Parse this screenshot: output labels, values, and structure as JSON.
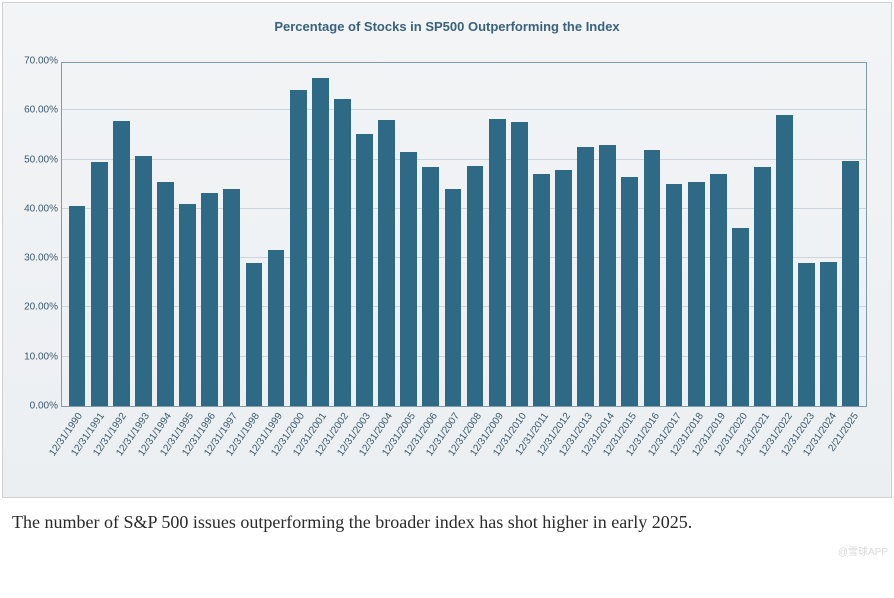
{
  "chart": {
    "type": "bar",
    "title": "Percentage of Stocks in SP500 Outperforming the Index",
    "title_fontsize": 13,
    "title_color": "#39627b",
    "background_gradient": [
      "#f2f4f6",
      "#eceff2"
    ],
    "plot_border_color": "#7f9aaa",
    "grid_color": "rgba(140,160,175,0.35)",
    "bar_color": "#2e6a85",
    "bar_width_ratio": 0.76,
    "ylim": [
      0,
      70
    ],
    "ytick_step": 10,
    "ytick_format_suffix": ".00%",
    "label_fontsize": 10,
    "label_color": "#3a5a6c",
    "xlabel_rotation_deg": -55,
    "categories": [
      "12/31/1990",
      "12/31/1991",
      "12/31/1992",
      "12/31/1993",
      "12/31/1994",
      "12/31/1995",
      "12/31/1996",
      "12/31/1997",
      "12/31/1998",
      "12/31/1999",
      "12/31/2000",
      "12/31/2001",
      "12/31/2002",
      "12/31/2003",
      "12/31/2004",
      "12/31/2005",
      "12/31/2006",
      "12/31/2007",
      "12/31/2008",
      "12/31/2009",
      "12/31/2010",
      "12/31/2011",
      "12/31/2012",
      "12/31/2013",
      "12/31/2014",
      "12/31/2015",
      "12/31/2016",
      "12/31/2017",
      "12/31/2018",
      "12/31/2019",
      "12/31/2020",
      "12/31/2021",
      "12/31/2022",
      "12/31/2023",
      "12/31/2024",
      "2/21/2025"
    ],
    "values": [
      40.5,
      49.5,
      57.8,
      50.8,
      45.5,
      41.0,
      43.3,
      44.0,
      29.0,
      31.7,
      64.2,
      66.5,
      62.2,
      55.2,
      58.0,
      51.5,
      48.5,
      44.0,
      48.8,
      58.3,
      57.7,
      47.0,
      47.8,
      52.6,
      53.0,
      46.5,
      52.0,
      45.0,
      45.5,
      47.0,
      36.2,
      48.5,
      59.0,
      29.0,
      29.2,
      49.8
    ]
  },
  "caption": "The number of S&P 500 issues outperforming the broader index has shot higher in early 2025.",
  "caption_fontsize": 18,
  "caption_color": "#2a2a2a",
  "watermark": "@雪球APP"
}
